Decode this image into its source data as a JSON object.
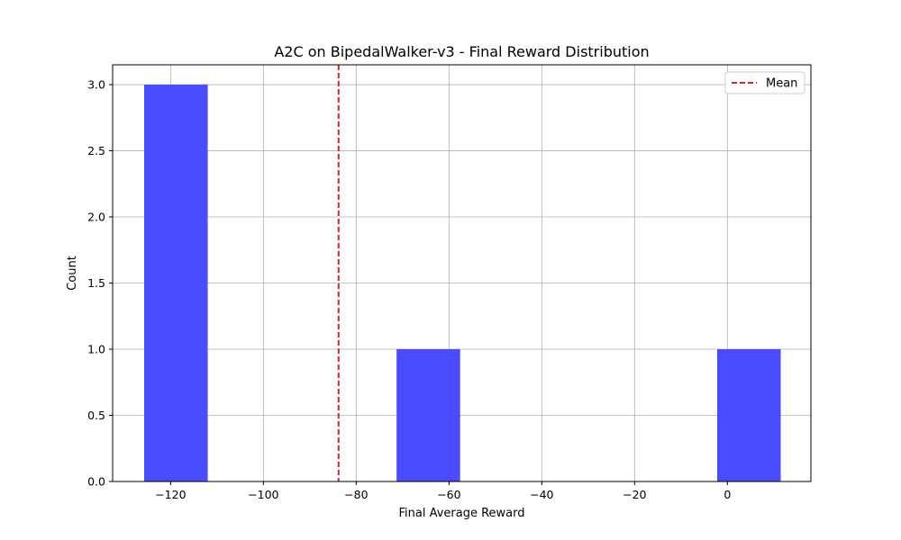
{
  "chart_data": {
    "type": "bar",
    "title": "A2C on BipedalWalker-v3 - Final Reward Distribution",
    "xlabel": "Final Average Reward",
    "ylabel": "Count",
    "xlim": [
      -132.5,
      18.0
    ],
    "ylim": [
      0,
      3.15
    ],
    "x_ticks": [
      -120,
      -100,
      -80,
      -60,
      -40,
      -20,
      0
    ],
    "x_tick_labels": [
      "−120",
      "−100",
      "−80",
      "−60",
      "−40",
      "−20",
      "0"
    ],
    "y_ticks": [
      0.0,
      0.5,
      1.0,
      1.5,
      2.0,
      2.5,
      3.0
    ],
    "y_tick_labels": [
      "0.0",
      "0.5",
      "1.0",
      "1.5",
      "2.0",
      "2.5",
      "3.0"
    ],
    "bins": [
      {
        "start": -125.7,
        "end": -112.0,
        "count": 3
      },
      {
        "start": -71.3,
        "end": -57.6,
        "count": 1
      },
      {
        "start": -2.2,
        "end": 11.5,
        "count": 1
      }
    ],
    "mean_line": {
      "value": -83.8,
      "label": "Mean",
      "color": "#d62728",
      "style": "dashed"
    },
    "bar_color": "#4b4bff",
    "grid": true,
    "legend_position": "upper-right"
  }
}
